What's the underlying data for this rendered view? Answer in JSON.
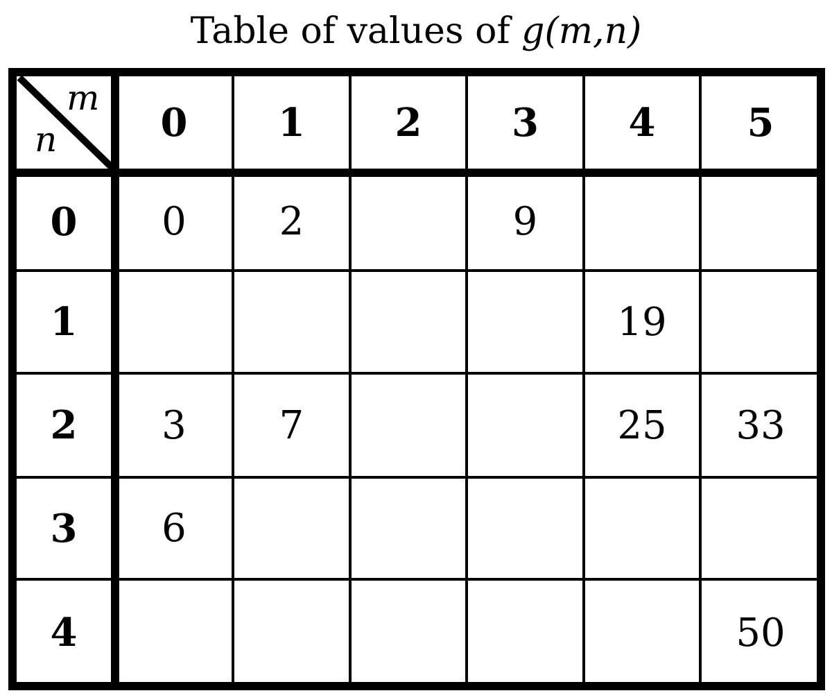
{
  "title": {
    "text": "Table of values of ",
    "func": "g(m,n)"
  },
  "table": {
    "corner": {
      "column_var": "m",
      "row_var": "n"
    },
    "column_headers": [
      "0",
      "1",
      "2",
      "3",
      "4",
      "5"
    ],
    "row_headers": [
      "0",
      "1",
      "2",
      "3",
      "4"
    ],
    "rows": [
      [
        "0",
        "2",
        "",
        "9",
        "",
        ""
      ],
      [
        "",
        "",
        "",
        "",
        "19",
        ""
      ],
      [
        "3",
        "7",
        "",
        "",
        "25",
        "33"
      ],
      [
        "6",
        "",
        "",
        "",
        "",
        ""
      ],
      [
        "",
        "",
        "",
        "",
        "",
        "50"
      ]
    ]
  }
}
